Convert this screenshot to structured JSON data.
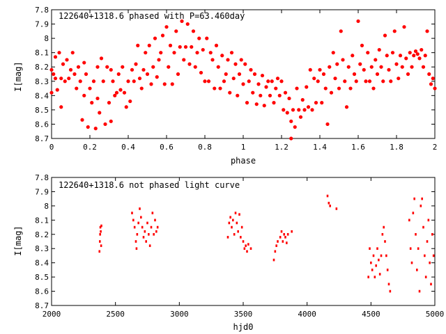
{
  "chart_data": [
    {
      "type": "scatter",
      "title": "122640+1318.6 phased with P=63.460day",
      "xlabel": "phase",
      "ylabel": "I[mag]",
      "xlim": [
        0,
        2
      ],
      "ylim": [
        8.7,
        7.8
      ],
      "y_inverted": true,
      "grid": false,
      "marker_color": "#ff0000",
      "x_ticks": [
        "0",
        "0.2",
        "0.4",
        "0.6",
        "0.8",
        "1",
        "1.2",
        "1.4",
        "1.6",
        "1.8",
        "2"
      ],
      "x_tick_values": [
        0,
        0.2,
        0.4,
        0.6,
        0.8,
        1.0,
        1.2,
        1.4,
        1.6,
        1.8,
        2.0
      ],
      "y_ticks": [
        "7.8",
        "7.9",
        "8",
        "8.1",
        "8.2",
        "8.3",
        "8.4",
        "8.5",
        "8.6",
        "8.7"
      ],
      "y_tick_values": [
        7.8,
        7.9,
        8.0,
        8.1,
        8.2,
        8.3,
        8.4,
        8.5,
        8.6,
        8.7
      ],
      "points": [
        [
          0.0,
          8.22
        ],
        [
          0.0,
          8.38
        ],
        [
          0.01,
          8.25
        ],
        [
          0.02,
          8.13
        ],
        [
          0.02,
          8.28
        ],
        [
          0.03,
          8.36
        ],
        [
          0.04,
          8.1
        ],
        [
          0.05,
          8.28
        ],
        [
          0.05,
          8.48
        ],
        [
          0.06,
          8.18
        ],
        [
          0.07,
          8.3
        ],
        [
          0.08,
          8.15
        ],
        [
          0.09,
          8.28
        ],
        [
          0.1,
          8.22
        ],
        [
          0.11,
          8.1
        ],
        [
          0.12,
          8.25
        ],
        [
          0.13,
          8.35
        ],
        [
          0.14,
          8.2
        ],
        [
          0.15,
          8.3
        ],
        [
          0.16,
          8.57
        ],
        [
          0.17,
          8.17
        ],
        [
          0.17,
          8.4
        ],
        [
          0.18,
          8.25
        ],
        [
          0.19,
          8.62
        ],
        [
          0.2,
          8.35
        ],
        [
          0.21,
          8.45
        ],
        [
          0.22,
          8.3
        ],
        [
          0.23,
          8.63
        ],
        [
          0.24,
          8.2
        ],
        [
          0.24,
          8.42
        ],
        [
          0.25,
          8.52
        ],
        [
          0.26,
          8.14
        ],
        [
          0.27,
          8.3
        ],
        [
          0.28,
          8.6
        ],
        [
          0.29,
          8.2
        ],
        [
          0.3,
          8.45
        ],
        [
          0.31,
          8.58
        ],
        [
          0.31,
          8.22
        ],
        [
          0.32,
          8.3
        ],
        [
          0.33,
          8.4
        ],
        [
          0.34,
          8.38
        ],
        [
          0.35,
          8.25
        ],
        [
          0.36,
          8.36
        ],
        [
          0.37,
          8.2
        ],
        [
          0.38,
          8.38
        ],
        [
          0.39,
          8.48
        ],
        [
          0.4,
          8.3
        ],
        [
          0.41,
          8.44
        ],
        [
          0.42,
          8.22
        ],
        [
          0.43,
          8.3
        ],
        [
          0.44,
          8.18
        ],
        [
          0.45,
          8.05
        ],
        [
          0.46,
          8.28
        ],
        [
          0.47,
          8.35
        ],
        [
          0.48,
          8.22
        ],
        [
          0.49,
          8.1
        ],
        [
          0.5,
          8.25
        ],
        [
          0.51,
          8.05
        ],
        [
          0.52,
          8.32
        ],
        [
          0.53,
          8.2
        ],
        [
          0.54,
          8.0
        ],
        [
          0.55,
          8.27
        ],
        [
          0.56,
          8.15
        ],
        [
          0.57,
          8.1
        ],
        [
          0.58,
          7.98
        ],
        [
          0.59,
          8.32
        ],
        [
          0.6,
          7.92
        ],
        [
          0.61,
          8.2
        ],
        [
          0.62,
          8.05
        ],
        [
          0.63,
          8.32
        ],
        [
          0.64,
          8.1
        ],
        [
          0.65,
          7.95
        ],
        [
          0.66,
          8.25
        ],
        [
          0.67,
          8.06
        ],
        [
          0.68,
          7.88
        ],
        [
          0.69,
          8.15
        ],
        [
          0.7,
          8.06
        ],
        [
          0.71,
          7.9
        ],
        [
          0.72,
          8.18
        ],
        [
          0.73,
          8.06
        ],
        [
          0.74,
          7.95
        ],
        [
          0.75,
          8.2
        ],
        [
          0.76,
          8.1
        ],
        [
          0.77,
          8.0
        ],
        [
          0.78,
          8.24
        ],
        [
          0.79,
          8.08
        ],
        [
          0.8,
          8.3
        ],
        [
          0.81,
          8.0
        ],
        [
          0.82,
          8.3
        ],
        [
          0.83,
          8.1
        ],
        [
          0.84,
          8.15
        ],
        [
          0.85,
          8.35
        ],
        [
          0.86,
          8.05
        ],
        [
          0.87,
          8.2
        ],
        [
          0.88,
          8.35
        ],
        [
          0.89,
          8.12
        ],
        [
          0.9,
          8.3
        ],
        [
          0.91,
          8.25
        ],
        [
          0.92,
          8.15
        ],
        [
          0.93,
          8.38
        ],
        [
          0.94,
          8.1
        ],
        [
          0.95,
          8.28
        ],
        [
          0.96,
          8.18
        ],
        [
          0.97,
          8.4
        ],
        [
          0.98,
          8.25
        ],
        [
          0.99,
          8.15
        ],
        [
          1.0,
          8.32
        ],
        [
          1.01,
          8.18
        ],
        [
          1.02,
          8.45
        ],
        [
          1.03,
          8.3
        ],
        [
          1.04,
          8.22
        ],
        [
          1.05,
          8.38
        ],
        [
          1.06,
          8.25
        ],
        [
          1.07,
          8.46
        ],
        [
          1.08,
          8.32
        ],
        [
          1.09,
          8.4
        ],
        [
          1.1,
          8.26
        ],
        [
          1.11,
          8.47
        ],
        [
          1.12,
          8.34
        ],
        [
          1.13,
          8.3
        ],
        [
          1.14,
          8.4
        ],
        [
          1.15,
          8.3
        ],
        [
          1.16,
          8.45
        ],
        [
          1.17,
          8.35
        ],
        [
          1.18,
          8.28
        ],
        [
          1.19,
          8.4
        ],
        [
          1.2,
          8.3
        ],
        [
          1.21,
          8.5
        ],
        [
          1.22,
          8.38
        ],
        [
          1.23,
          8.52
        ],
        [
          1.24,
          8.42
        ],
        [
          1.25,
          8.58
        ],
        [
          1.25,
          8.7
        ],
        [
          1.26,
          8.5
        ],
        [
          1.27,
          8.62
        ],
        [
          1.28,
          8.35
        ],
        [
          1.29,
          8.5
        ],
        [
          1.3,
          8.55
        ],
        [
          1.31,
          8.43
        ],
        [
          1.32,
          8.5
        ],
        [
          1.33,
          8.34
        ],
        [
          1.34,
          8.48
        ],
        [
          1.35,
          8.22
        ],
        [
          1.36,
          8.5
        ],
        [
          1.37,
          8.28
        ],
        [
          1.38,
          8.45
        ],
        [
          1.39,
          8.3
        ],
        [
          1.4,
          8.22
        ],
        [
          1.41,
          8.45
        ],
        [
          1.42,
          8.25
        ],
        [
          1.43,
          8.35
        ],
        [
          1.44,
          8.6
        ],
        [
          1.45,
          8.2
        ],
        [
          1.46,
          8.38
        ],
        [
          1.47,
          8.1
        ],
        [
          1.48,
          8.28
        ],
        [
          1.49,
          8.18
        ],
        [
          1.5,
          8.35
        ],
        [
          1.51,
          7.95
        ],
        [
          1.52,
          8.15
        ],
        [
          1.53,
          8.3
        ],
        [
          1.54,
          8.48
        ],
        [
          1.55,
          8.2
        ],
        [
          1.56,
          8.35
        ],
        [
          1.57,
          8.12
        ],
        [
          1.58,
          8.25
        ],
        [
          1.59,
          8.3
        ],
        [
          1.6,
          7.88
        ],
        [
          1.61,
          8.18
        ],
        [
          1.62,
          8.05
        ],
        [
          1.63,
          8.22
        ],
        [
          1.64,
          8.3
        ],
        [
          1.65,
          8.1
        ],
        [
          1.66,
          8.3
        ],
        [
          1.67,
          8.2
        ],
        [
          1.68,
          8.35
        ],
        [
          1.69,
          8.15
        ],
        [
          1.7,
          8.25
        ],
        [
          1.71,
          8.08
        ],
        [
          1.72,
          8.2
        ],
        [
          1.73,
          8.3
        ],
        [
          1.74,
          7.98
        ],
        [
          1.75,
          8.12
        ],
        [
          1.76,
          8.22
        ],
        [
          1.77,
          8.3
        ],
        [
          1.78,
          8.1
        ],
        [
          1.79,
          7.95
        ],
        [
          1.8,
          8.18
        ],
        [
          1.81,
          8.28
        ],
        [
          1.82,
          8.12
        ],
        [
          1.83,
          8.2
        ],
        [
          1.84,
          7.92
        ],
        [
          1.85,
          8.14
        ],
        [
          1.86,
          8.25
        ],
        [
          1.87,
          8.1
        ],
        [
          1.88,
          8.2
        ],
        [
          1.89,
          8.12
        ],
        [
          1.9,
          8.09
        ],
        [
          1.91,
          8.11
        ],
        [
          1.92,
          8.14
        ],
        [
          1.93,
          8.08
        ],
        [
          1.94,
          8.2
        ],
        [
          1.95,
          8.12
        ],
        [
          1.96,
          7.95
        ],
        [
          1.97,
          8.25
        ],
        [
          1.98,
          8.32
        ],
        [
          1.99,
          8.28
        ],
        [
          2.0,
          8.35
        ]
      ]
    },
    {
      "type": "scatter",
      "title": "122640+1318.6 not phased light curve",
      "xlabel": "hjd0",
      "ylabel": "I[mag]",
      "xlim": [
        2000,
        5000
      ],
      "ylim": [
        8.7,
        7.8
      ],
      "y_inverted": true,
      "grid": false,
      "marker_color": "#ff0000",
      "x_ticks": [
        "2000",
        "2500",
        "3000",
        "3500",
        "4000",
        "4500",
        "5000"
      ],
      "x_tick_values": [
        2000,
        2500,
        3000,
        3500,
        4000,
        4500,
        5000
      ],
      "y_ticks": [
        "7.8",
        "7.9",
        "8",
        "8.1",
        "8.2",
        "8.3",
        "8.4",
        "8.5",
        "8.6",
        "8.7"
      ],
      "y_tick_values": [
        7.8,
        7.9,
        8.0,
        8.1,
        8.2,
        8.3,
        8.4,
        8.5,
        8.6,
        8.7
      ],
      "points": [
        [
          2375,
          8.32
        ],
        [
          2378,
          8.25
        ],
        [
          2380,
          8.2
        ],
        [
          2382,
          8.15
        ],
        [
          2385,
          8.18
        ],
        [
          2388,
          8.28
        ],
        [
          2390,
          8.14
        ],
        [
          2630,
          8.05
        ],
        [
          2640,
          8.1
        ],
        [
          2650,
          8.15
        ],
        [
          2660,
          8.25
        ],
        [
          2665,
          8.3
        ],
        [
          2670,
          8.2
        ],
        [
          2680,
          8.12
        ],
        [
          2690,
          8.02
        ],
        [
          2700,
          8.08
        ],
        [
          2710,
          8.15
        ],
        [
          2720,
          8.22
        ],
        [
          2730,
          8.18
        ],
        [
          2740,
          8.25
        ],
        [
          2750,
          8.12
        ],
        [
          2760,
          8.2
        ],
        [
          2770,
          8.28
        ],
        [
          2780,
          8.15
        ],
        [
          2790,
          8.05
        ],
        [
          2800,
          8.2
        ],
        [
          2810,
          8.1
        ],
        [
          2820,
          8.18
        ],
        [
          2830,
          8.15
        ],
        [
          3380,
          8.22
        ],
        [
          3390,
          8.12
        ],
        [
          3400,
          8.08
        ],
        [
          3410,
          8.15
        ],
        [
          3420,
          8.1
        ],
        [
          3430,
          8.2
        ],
        [
          3440,
          8.05
        ],
        [
          3450,
          8.12
        ],
        [
          3460,
          8.18
        ],
        [
          3470,
          8.06
        ],
        [
          3480,
          8.22
        ],
        [
          3490,
          8.15
        ],
        [
          3500,
          8.25
        ],
        [
          3510,
          8.3
        ],
        [
          3520,
          8.28
        ],
        [
          3530,
          8.32
        ],
        [
          3540,
          8.27
        ],
        [
          3560,
          8.3
        ],
        [
          3740,
          8.38
        ],
        [
          3750,
          8.32
        ],
        [
          3760,
          8.28
        ],
        [
          3770,
          8.25
        ],
        [
          3790,
          8.22
        ],
        [
          3800,
          8.18
        ],
        [
          3810,
          8.25
        ],
        [
          3820,
          8.2
        ],
        [
          3830,
          8.22
        ],
        [
          3840,
          8.26
        ],
        [
          3850,
          8.2
        ],
        [
          3880,
          8.18
        ],
        [
          4160,
          7.93
        ],
        [
          4170,
          7.98
        ],
        [
          4180,
          8.0
        ],
        [
          4230,
          8.02
        ],
        [
          4480,
          8.5
        ],
        [
          4490,
          8.3
        ],
        [
          4500,
          8.4
        ],
        [
          4510,
          8.45
        ],
        [
          4520,
          8.35
        ],
        [
          4530,
          8.5
        ],
        [
          4540,
          8.42
        ],
        [
          4550,
          8.3
        ],
        [
          4560,
          8.38
        ],
        [
          4570,
          8.48
        ],
        [
          4580,
          8.35
        ],
        [
          4590,
          8.2
        ],
        [
          4600,
          8.15
        ],
        [
          4610,
          8.25
        ],
        [
          4620,
          8.35
        ],
        [
          4630,
          8.45
        ],
        [
          4640,
          8.55
        ],
        [
          4650,
          8.6
        ],
        [
          4800,
          8.1
        ],
        [
          4810,
          8.3
        ],
        [
          4820,
          8.4
        ],
        [
          4830,
          8.05
        ],
        [
          4840,
          7.95
        ],
        [
          4850,
          8.2
        ],
        [
          4860,
          8.45
        ],
        [
          4870,
          8.3
        ],
        [
          4880,
          8.6
        ],
        [
          4890,
          8.0
        ],
        [
          4900,
          7.95
        ],
        [
          4910,
          8.15
        ],
        [
          4920,
          8.35
        ],
        [
          4930,
          8.5
        ],
        [
          4940,
          8.25
        ],
        [
          4950,
          8.1
        ],
        [
          4960,
          8.4
        ],
        [
          4970,
          8.55
        ],
        [
          4980,
          8.2
        ],
        [
          4990,
          8.35
        ]
      ]
    }
  ]
}
